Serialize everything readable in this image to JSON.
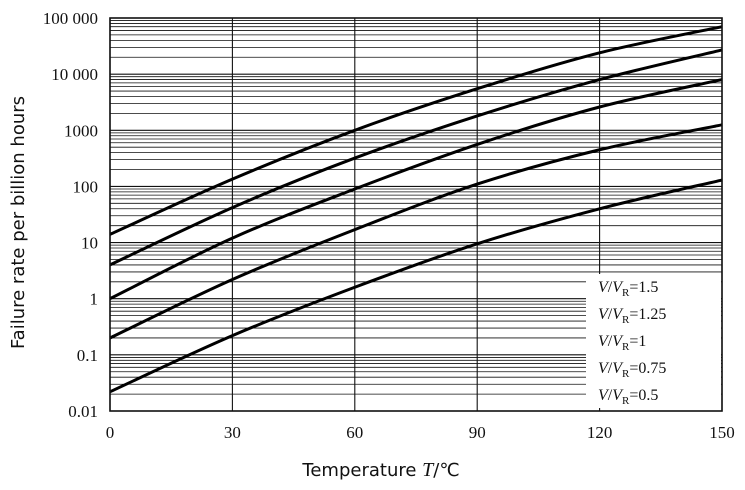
{
  "chart_data": {
    "type": "line",
    "xlabel": "Temperature ",
    "xlabel_var": "T",
    "xlabel_unit": "/℃",
    "ylabel": "Failure rate per billion hours",
    "xlim": [
      0,
      150
    ],
    "ylim": [
      0.01,
      100000
    ],
    "yscale": "log",
    "x_ticks": [
      0,
      30,
      60,
      90,
      120,
      150
    ],
    "x_tick_labels": [
      "0",
      "30",
      "60",
      "90",
      "120",
      "150"
    ],
    "y_ticks": [
      0.01,
      0.1,
      1,
      10,
      100,
      1000,
      10000,
      100000
    ],
    "y_tick_labels": [
      "0.01",
      "0.1",
      "1",
      "10",
      "100",
      "1000",
      "10 000",
      "100 000"
    ],
    "grid": true,
    "legend_position": "bottom-right",
    "x": [
      0,
      30,
      60,
      90,
      120,
      150
    ],
    "series": [
      {
        "name": "V/VR=1.5",
        "values": [
          14,
          135,
          1000,
          5500,
          24000,
          70000
        ]
      },
      {
        "name": "V/VR=1.25",
        "values": [
          4,
          42,
          320,
          1800,
          8000,
          27000
        ]
      },
      {
        "name": "V/VR=1",
        "values": [
          1,
          12,
          90,
          560,
          2600,
          8000
        ]
      },
      {
        "name": "V/VR=0.75",
        "values": [
          0.2,
          2.2,
          17,
          110,
          450,
          1250
        ]
      },
      {
        "name": "V/VR=0.5",
        "values": [
          0.022,
          0.22,
          1.6,
          9.5,
          40,
          130
        ]
      }
    ],
    "legend_entries": [
      {
        "var": "V",
        "sep": "/",
        "sym": "V",
        "sub": "R",
        "val": "=1.5"
      },
      {
        "var": "V",
        "sep": "/",
        "sym": "V",
        "sub": "R",
        "val": "=1.25"
      },
      {
        "var": "V",
        "sep": "/",
        "sym": "V",
        "sub": "R",
        "val": "=1"
      },
      {
        "var": "V",
        "sep": "/",
        "sym": "V",
        "sub": "R",
        "val": "=0.75"
      },
      {
        "var": "V",
        "sep": "/",
        "sym": "V",
        "sub": "R",
        "val": "=0.5"
      }
    ]
  }
}
